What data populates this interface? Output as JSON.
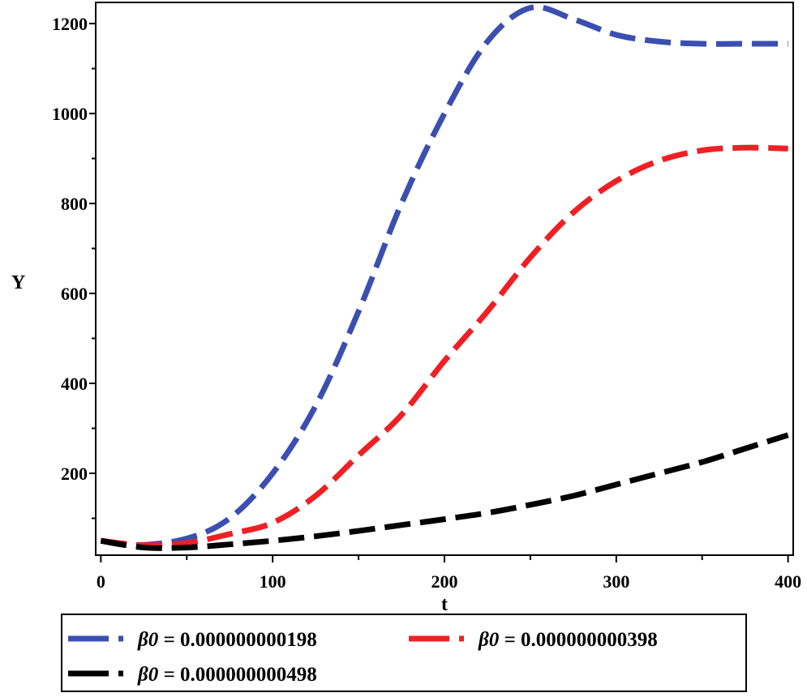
{
  "chart_data": {
    "type": "line",
    "title": "",
    "xlabel": "t",
    "ylabel": "Y",
    "xlim": [
      -3,
      403
    ],
    "ylim": [
      18,
      1247
    ],
    "xticks": [
      0,
      100,
      200,
      300,
      400
    ],
    "xtick_labels": [
      "0",
      "100",
      "200",
      "300",
      "400"
    ],
    "yticks": [
      200,
      400,
      600,
      800,
      1000,
      1200
    ],
    "ytick_labels": [
      "200",
      "400",
      "600",
      "800",
      "1000",
      "1200"
    ],
    "grid": false,
    "legend_placement": "bottom",
    "series": [
      {
        "name": "β0 = 0.000000000198",
        "legend_symbol": "β0",
        "legend_value": "= 0.000000000198",
        "color": "#3a4fb0",
        "style": "dashed",
        "x": [
          0,
          20,
          50,
          75,
          100,
          125,
          150,
          175,
          200,
          225,
          250,
          275,
          300,
          325,
          350,
          375,
          400
        ],
        "y": [
          50,
          40,
          55,
          100,
          200,
          350,
          560,
          800,
          1000,
          1160,
          1235,
          1210,
          1175,
          1160,
          1155,
          1155,
          1155
        ]
      },
      {
        "name": "β0 = 0.000000000398",
        "legend_symbol": "β0",
        "legend_value": "= 0.000000000398",
        "color": "#ee2024",
        "style": "dashed",
        "x": [
          0,
          25,
          50,
          75,
          100,
          125,
          150,
          175,
          200,
          225,
          250,
          275,
          300,
          325,
          350,
          375,
          400
        ],
        "y": [
          50,
          40,
          45,
          65,
          90,
          150,
          240,
          330,
          450,
          560,
          680,
          780,
          850,
          895,
          918,
          924,
          922
        ]
      },
      {
        "name": "β0 = 0.000000000498",
        "legend_symbol": "β0",
        "legend_value": "= 0.000000000498",
        "color": "#000000",
        "style": "dashed",
        "x": [
          0,
          25,
          50,
          75,
          100,
          125,
          150,
          175,
          200,
          225,
          250,
          275,
          300,
          325,
          350,
          375,
          400
        ],
        "y": [
          50,
          35,
          35,
          42,
          50,
          60,
          72,
          85,
          98,
          112,
          130,
          150,
          175,
          200,
          225,
          255,
          285
        ]
      }
    ]
  }
}
